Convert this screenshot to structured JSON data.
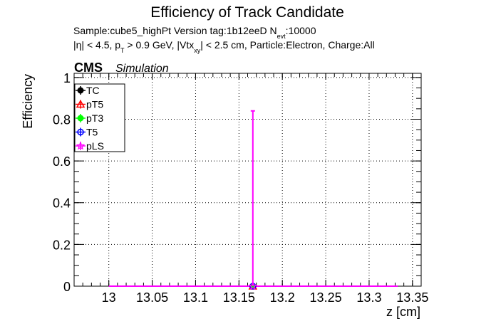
{
  "chart_data": {
    "type": "scatter",
    "title": "Efficiency of Track Candidate",
    "subtitle_1": "Sample:cube5_highPt   Version tag:1b12eeD  N",
    "subtitle_1_sub": "evt",
    "subtitle_1_tail": ":10000",
    "subtitle_2": {
      "eta": "|η| < 4.5, p",
      "pt_sub": "T",
      "pt_tail": " > 0.9 GeV, |Vtx",
      "vtx_sub": "xy",
      "tail": "| < 2.5 cm, Particle:Electron, Charge:All"
    },
    "cms_label": "CMS",
    "sim_label": "Simulation",
    "xlabel": "z [cm]",
    "ylabel": "Efficiency",
    "xlim": [
      12.96,
      13.36
    ],
    "ylim": [
      0,
      1.02
    ],
    "x_ticks": [
      "13",
      "13.05",
      "13.1",
      "13.15",
      "13.2",
      "13.25",
      "13.3",
      "13.35"
    ],
    "x_tick_values": [
      13.0,
      13.05,
      13.1,
      13.15,
      13.2,
      13.25,
      13.3,
      13.35
    ],
    "y_ticks": [
      "0",
      "0.2",
      "0.4",
      "0.6",
      "0.8",
      "1"
    ],
    "y_tick_values": [
      0,
      0.2,
      0.4,
      0.6,
      0.8,
      1.0
    ],
    "grid": true,
    "legend_position": "top-left",
    "series": [
      {
        "name": "TC",
        "color": "#000000",
        "marker": "circle-filled",
        "x": [
          13.166
        ],
        "y": [
          0
        ],
        "err_up": [
          0
        ]
      },
      {
        "name": "pT5",
        "color": "#ff0000",
        "marker": "triangle-open",
        "x": [
          13.166
        ],
        "y": [
          0
        ],
        "err_up": [
          0
        ]
      },
      {
        "name": "pT3",
        "color": "#00ff00",
        "marker": "circle-filled",
        "x": [
          13.166
        ],
        "y": [
          0
        ],
        "err_up": [
          0
        ]
      },
      {
        "name": "T5",
        "color": "#0000ff",
        "marker": "circle-open",
        "x": [
          13.166
        ],
        "y": [
          0
        ],
        "err_up": [
          0
        ]
      },
      {
        "name": "pLS",
        "color": "#ff00ff",
        "marker": "star-open",
        "x": [
          13.166
        ],
        "y": [
          0
        ],
        "err_up": [
          0.84
        ]
      }
    ],
    "baseline": {
      "x_start": 13.0,
      "x_end": 13.333
    }
  }
}
